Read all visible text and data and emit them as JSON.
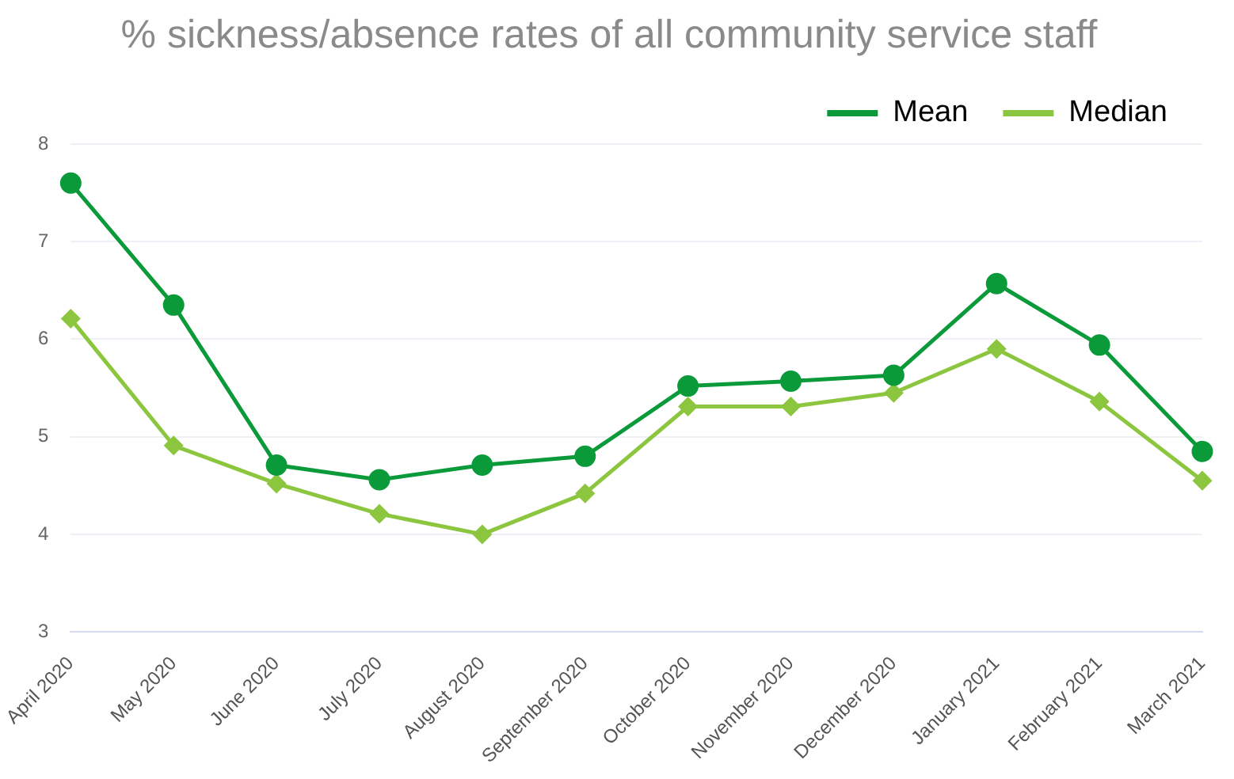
{
  "chart_data": {
    "type": "line",
    "title": "% sickness/absence rates of all community service staff",
    "categories": [
      "April 2020",
      "May 2020",
      "June 2020",
      "July 2020",
      "August 2020",
      "September 2020",
      "October 2020",
      "November 2020",
      "December 2020",
      "January 2021",
      "February 2021",
      "March 2021"
    ],
    "series": [
      {
        "name": "Mean",
        "color": "#0a9a3a",
        "marker": "circle",
        "values": [
          7.6,
          6.35,
          4.71,
          4.56,
          4.71,
          4.8,
          5.52,
          5.57,
          5.63,
          6.57,
          5.94,
          4.85
        ]
      },
      {
        "name": "Median",
        "color": "#8cc63f",
        "marker": "diamond",
        "values": [
          6.21,
          4.91,
          4.52,
          4.21,
          4.0,
          4.42,
          5.31,
          5.31,
          5.45,
          5.9,
          5.36,
          4.55
        ]
      }
    ],
    "ylim": [
      3,
      8
    ],
    "yticks": [
      3,
      4,
      5,
      6,
      7,
      8
    ],
    "grid": "y",
    "legend": "top right",
    "line_style": "solid"
  }
}
